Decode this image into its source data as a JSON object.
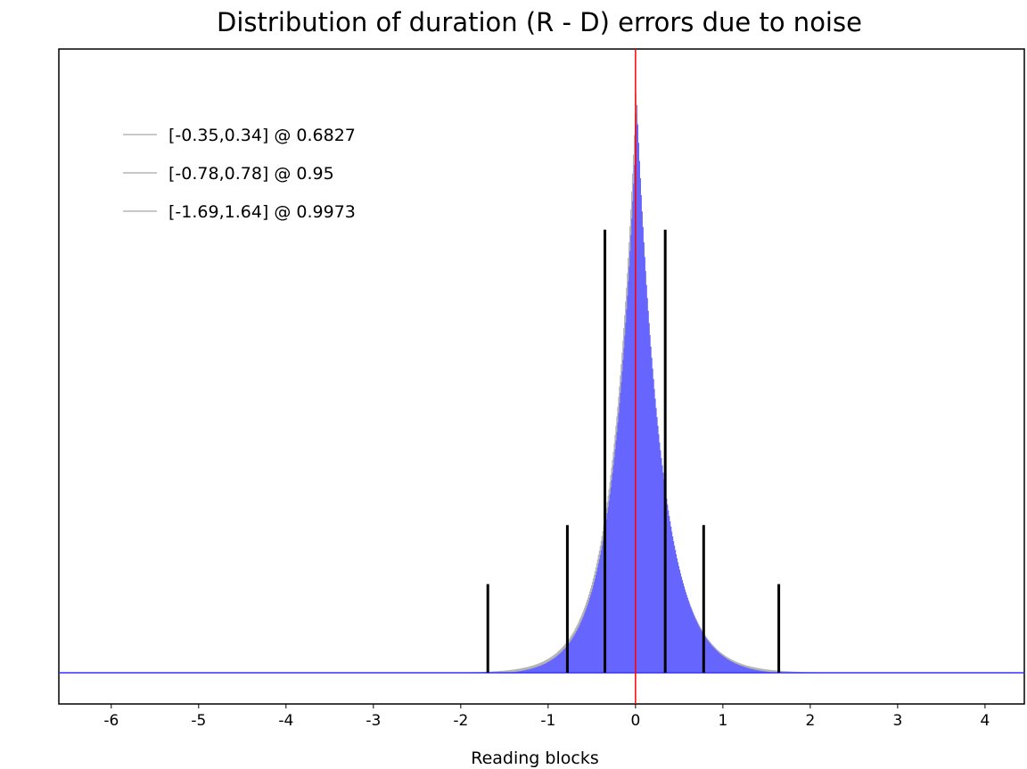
{
  "chart_data": {
    "type": "histogram",
    "title": "Distribution of duration (R - D) errors due to noise",
    "xlabel": "Reading blocks",
    "ylabel": "",
    "xlim": [
      -6.6,
      4.45
    ],
    "ylim": [
      0,
      1
    ],
    "x_ticks": [
      -6,
      -5,
      -4,
      -3,
      -2,
      -1,
      0,
      1,
      2,
      3,
      4
    ],
    "y_ticks": [],
    "grid": false,
    "legend_position": "top-left",
    "distribution": {
      "center": 0,
      "peak_relative_height": 0.98,
      "spread_left": 0.27,
      "spread_right": 0.29,
      "fill_color": "#6666ff",
      "outline_color": "#b4b4b4",
      "baseline_color": "#3333ff"
    },
    "reference_line": {
      "x": 0,
      "color": "#ff0000"
    },
    "intervals": [
      {
        "label": "[-0.35,0.34] @ 0.6827",
        "low": -0.35,
        "high": 0.34,
        "marker_height": 0.75
      },
      {
        "label": "[-0.78,0.78] @ 0.95",
        "low": -0.78,
        "high": 0.78,
        "marker_height": 0.25
      },
      {
        "label": "[-1.69,1.64] @ 0.9973",
        "low": -1.69,
        "high": 1.64,
        "marker_height": 0.15
      }
    ],
    "legend_line_color": "#c8c8c8"
  }
}
